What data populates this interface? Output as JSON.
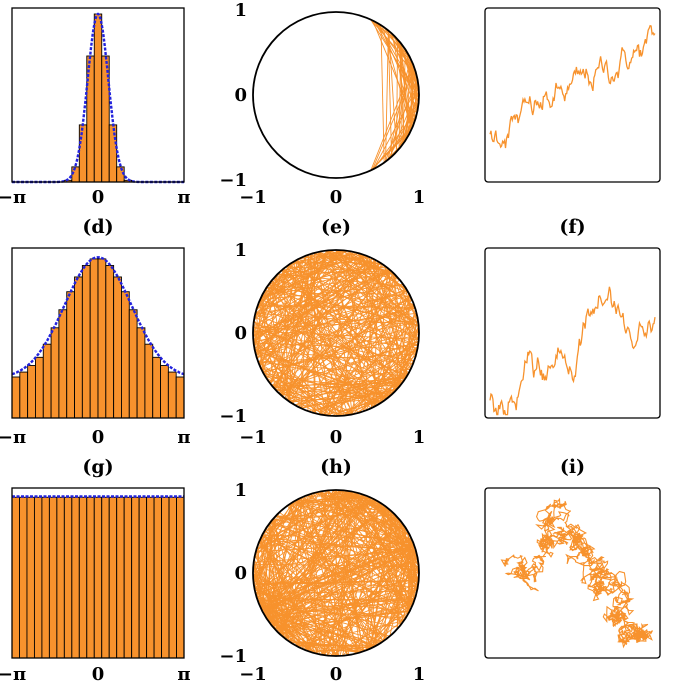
{
  "colors": {
    "fill": "#f7922d",
    "line": "#2222dd",
    "frame": "#000000"
  },
  "chart_data": [
    {
      "type": "bar",
      "panel": "a",
      "xticks": [
        "−π",
        "0",
        "π"
      ],
      "xlim": [
        -3.1416,
        3.1416
      ],
      "ylim": [
        0,
        1
      ],
      "bar_values": [
        0,
        0,
        0,
        0,
        0,
        0,
        0,
        0.01,
        0.09,
        0.34,
        0.75,
        1.0,
        0.75,
        0.34,
        0.09,
        0.01,
        0,
        0,
        0,
        0,
        0,
        0,
        0
      ],
      "fit": {
        "kind": "gaussian",
        "amp": 1.0,
        "sigma": 0.38,
        "base": 0.0
      }
    },
    {
      "type": "line",
      "panel": "b",
      "label": "",
      "xticks": [
        "−1",
        "0",
        "1"
      ],
      "yticks": [
        "−1",
        "0",
        "1"
      ],
      "xlim": [
        -1,
        1
      ],
      "ylim": [
        -1,
        1
      ],
      "trajectory": {
        "kind": "right-cap",
        "segments": 90
      }
    },
    {
      "type": "line",
      "panel": "c",
      "label": "",
      "walk": {
        "steps": 170,
        "start": 0.28,
        "end": 0.82,
        "noise": 0.028
      }
    },
    {
      "type": "bar",
      "panel": "d",
      "label": "(d)",
      "xticks": [
        "−π",
        "0",
        "π"
      ],
      "xlim": [
        -3.1416,
        3.1416
      ],
      "ylim": [
        0,
        1
      ],
      "bar_values": [
        0.25,
        0.28,
        0.32,
        0.37,
        0.45,
        0.55,
        0.66,
        0.77,
        0.86,
        0.93,
        0.97,
        0.97,
        0.93,
        0.86,
        0.77,
        0.66,
        0.55,
        0.45,
        0.37,
        0.32,
        0.28,
        0.25
      ],
      "fit": {
        "kind": "gaussian",
        "amp": 0.74,
        "sigma": 1.22,
        "base": 0.24
      }
    },
    {
      "type": "line",
      "panel": "e",
      "label": "(e)",
      "xticks": [
        "−1",
        "0",
        "1"
      ],
      "yticks": [
        "−1",
        "0",
        "1"
      ],
      "xlim": [
        -1,
        1
      ],
      "ylim": [
        -1,
        1
      ],
      "trajectory": {
        "kind": "chords",
        "segments": 320
      }
    },
    {
      "type": "line",
      "panel": "f",
      "label": "(f)",
      "walk": {
        "steps": 170,
        "start": 0.1,
        "end": 0.6,
        "noise": 0.03,
        "peak": 0.9
      }
    },
    {
      "type": "bar",
      "panel": "g",
      "label": "(g)",
      "xticks": [
        "−π",
        "0",
        "π"
      ],
      "xlim": [
        -3.1416,
        3.1416
      ],
      "ylim": [
        0,
        1
      ],
      "bar_values": [
        0.98,
        0.98,
        0.98,
        0.98,
        0.98,
        0.98,
        0.98,
        0.98,
        0.98,
        0.98,
        0.98,
        0.98,
        0.98,
        0.98,
        0.98,
        0.98,
        0.98,
        0.98,
        0.98,
        0.98,
        0.98,
        0.98,
        0.98
      ],
      "fit": {
        "kind": "flat",
        "base": 0.985
      }
    },
    {
      "type": "line",
      "panel": "h",
      "label": "(h)",
      "xticks": [
        "−1",
        "0",
        "1"
      ],
      "yticks": [
        "−1",
        "0",
        "1"
      ],
      "xlim": [
        -1,
        1
      ],
      "ylim": [
        -1,
        1
      ],
      "trajectory": {
        "kind": "chords",
        "segments": 380
      }
    },
    {
      "type": "line",
      "panel": "i",
      "label": "(i)",
      "walk2d": {
        "steps": 1400,
        "path": [
          [
            0.1,
            0.55
          ],
          [
            0.3,
            0.5
          ],
          [
            0.35,
            0.7
          ],
          [
            0.4,
            0.9
          ],
          [
            0.55,
            0.7
          ],
          [
            0.55,
            0.55
          ],
          [
            0.7,
            0.45
          ],
          [
            0.75,
            0.3
          ],
          [
            0.8,
            0.2
          ],
          [
            0.95,
            0.15
          ],
          [
            0.85,
            0.05
          ]
        ]
      }
    }
  ]
}
